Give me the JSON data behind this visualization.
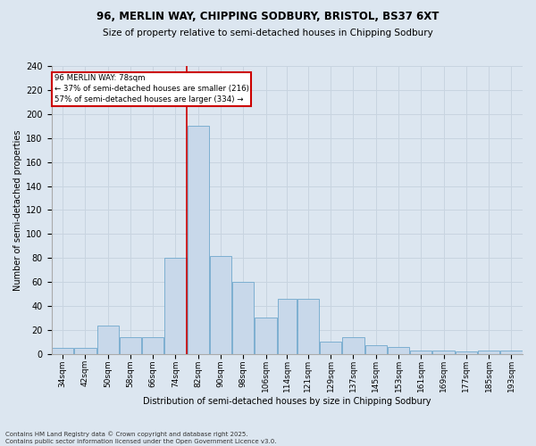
{
  "title1": "96, MERLIN WAY, CHIPPING SODBURY, BRISTOL, BS37 6XT",
  "title2": "Size of property relative to semi-detached houses in Chipping Sodbury",
  "xlabel": "Distribution of semi-detached houses by size in Chipping Sodbury",
  "ylabel": "Number of semi-detached properties",
  "categories": [
    "34sqm",
    "42sqm",
    "50sqm",
    "58sqm",
    "66sqm",
    "74sqm",
    "82sqm",
    "90sqm",
    "98sqm",
    "106sqm",
    "114sqm",
    "121sqm",
    "129sqm",
    "137sqm",
    "145sqm",
    "153sqm",
    "161sqm",
    "169sqm",
    "177sqm",
    "185sqm",
    "193sqm"
  ],
  "values": [
    5,
    5,
    24,
    14,
    14,
    80,
    190,
    82,
    60,
    30,
    46,
    46,
    10,
    14,
    7,
    6,
    3,
    3,
    2,
    3,
    3
  ],
  "bar_color": "#c8d8ea",
  "bar_edge_color": "#6fa8cc",
  "grid_color": "#c8d4e0",
  "bg_color": "#dce6f0",
  "vline_color": "#cc0000",
  "annotation_title": "96 MERLIN WAY: 78sqm",
  "annotation_line1": "← 37% of semi-detached houses are smaller (216)",
  "annotation_line2": "57% of semi-detached houses are larger (334) →",
  "annotation_box_color": "#cc0000",
  "footer1": "Contains HM Land Registry data © Crown copyright and database right 2025.",
  "footer2": "Contains public sector information licensed under the Open Government Licence v3.0.",
  "ylim": [
    0,
    240
  ],
  "yticks": [
    0,
    20,
    40,
    60,
    80,
    100,
    120,
    140,
    160,
    180,
    200,
    220,
    240
  ]
}
